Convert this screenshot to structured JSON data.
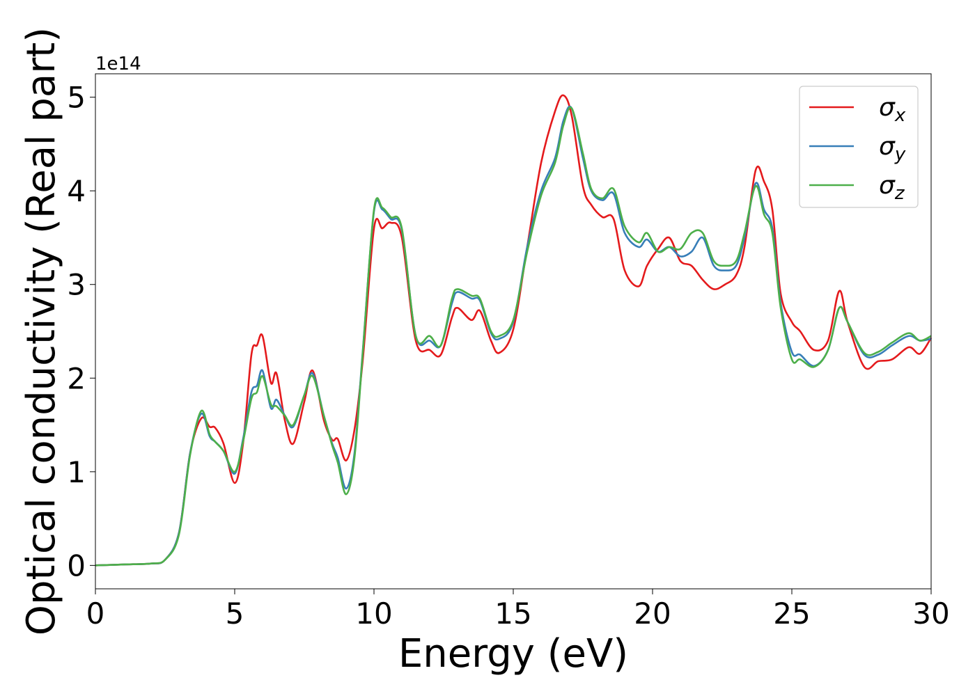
{
  "chart_data": {
    "type": "line",
    "title": "",
    "xlabel": "Energy (eV)",
    "ylabel": "Optical conductivity (Real part)",
    "y_offset_label": "1e14",
    "y_multiplier": 100000000000000.0,
    "xlim": [
      0,
      30
    ],
    "ylim": [
      -0.25,
      5.25
    ],
    "x_ticks": [
      0,
      5,
      10,
      15,
      20,
      25,
      30
    ],
    "y_ticks": [
      0,
      1,
      2,
      3,
      4,
      5
    ],
    "x_tick_labels": [
      "0",
      "5",
      "10",
      "15",
      "20",
      "25",
      "30"
    ],
    "y_tick_labels": [
      "0",
      "1",
      "2",
      "3",
      "4",
      "5"
    ],
    "grid": false,
    "legend_position": "top-right",
    "series": [
      {
        "name": "σ",
        "sub": "x",
        "color": "#e41a1c",
        "x": [
          0,
          1,
          2,
          2.5,
          3,
          3.4,
          3.8,
          4.1,
          4.3,
          4.6,
          5,
          5.3,
          5.6,
          5.8,
          6,
          6.3,
          6.5,
          6.8,
          7.1,
          7.5,
          7.8,
          8.2,
          8.5,
          8.7,
          9,
          9.3,
          9.6,
          10,
          10.3,
          10.6,
          11,
          11.5,
          12,
          12.4,
          12.8,
          13,
          13.5,
          13.8,
          14.2,
          14.5,
          15,
          15.5,
          16,
          16.5,
          16.8,
          17.1,
          17.5,
          17.8,
          18.2,
          18.6,
          19,
          19.5,
          19.8,
          20.2,
          20.6,
          21,
          21.4,
          21.8,
          22.2,
          22.6,
          23,
          23.3,
          23.7,
          24,
          24.3,
          24.6,
          25,
          25.3,
          25.8,
          26.3,
          26.7,
          27,
          27.6,
          28.1,
          28.6,
          29.2,
          29.6,
          30
        ],
        "y": [
          0,
          0.01,
          0.02,
          0.06,
          0.35,
          1.2,
          1.57,
          1.48,
          1.47,
          1.3,
          0.88,
          1.3,
          2.25,
          2.35,
          2.45,
          1.95,
          2.05,
          1.55,
          1.3,
          1.75,
          2.08,
          1.55,
          1.34,
          1.35,
          1.12,
          1.45,
          2.2,
          3.6,
          3.6,
          3.66,
          3.5,
          2.4,
          2.3,
          2.25,
          2.65,
          2.75,
          2.62,
          2.72,
          2.4,
          2.27,
          2.52,
          3.4,
          4.3,
          4.85,
          5.02,
          4.8,
          4.05,
          3.85,
          3.72,
          3.7,
          3.15,
          2.98,
          3.2,
          3.38,
          3.5,
          3.25,
          3.2,
          3.05,
          2.95,
          3.0,
          3.1,
          3.4,
          4.22,
          4.1,
          3.8,
          2.9,
          2.6,
          2.5,
          2.3,
          2.4,
          2.93,
          2.6,
          2.12,
          2.18,
          2.2,
          2.33,
          2.26,
          2.43
        ]
      },
      {
        "name": "σ",
        "sub": "y",
        "color": "#377eb8",
        "x": [
          0,
          1,
          2,
          2.5,
          3,
          3.4,
          3.8,
          4.1,
          4.3,
          4.6,
          5,
          5.3,
          5.6,
          5.8,
          6,
          6.3,
          6.5,
          6.8,
          7.1,
          7.5,
          7.8,
          8.2,
          8.5,
          8.7,
          9,
          9.3,
          9.6,
          10,
          10.3,
          10.6,
          11,
          11.5,
          12,
          12.4,
          12.8,
          13,
          13.5,
          13.8,
          14.2,
          14.5,
          15,
          15.5,
          16,
          16.5,
          16.8,
          17.1,
          17.5,
          17.8,
          18.2,
          18.6,
          19,
          19.5,
          19.8,
          20.2,
          20.6,
          21,
          21.4,
          21.8,
          22.2,
          22.6,
          23,
          23.3,
          23.7,
          24,
          24.3,
          24.6,
          25,
          25.3,
          25.8,
          26.3,
          26.7,
          27,
          27.6,
          28.1,
          28.6,
          29.2,
          29.6,
          30
        ],
        "y": [
          0,
          0.01,
          0.02,
          0.06,
          0.35,
          1.2,
          1.62,
          1.38,
          1.32,
          1.22,
          0.98,
          1.35,
          1.85,
          1.92,
          2.08,
          1.68,
          1.77,
          1.6,
          1.48,
          1.82,
          2.05,
          1.6,
          1.3,
          1.15,
          0.82,
          1.2,
          2.3,
          3.78,
          3.8,
          3.7,
          3.58,
          2.45,
          2.4,
          2.35,
          2.8,
          2.92,
          2.85,
          2.83,
          2.48,
          2.42,
          2.6,
          3.4,
          4.0,
          4.35,
          4.75,
          4.88,
          4.35,
          4.0,
          3.9,
          3.97,
          3.55,
          3.4,
          3.48,
          3.35,
          3.4,
          3.3,
          3.35,
          3.5,
          3.2,
          3.15,
          3.2,
          3.5,
          4.08,
          3.8,
          3.6,
          2.8,
          2.28,
          2.25,
          2.13,
          2.3,
          2.75,
          2.6,
          2.25,
          2.25,
          2.35,
          2.45,
          2.4,
          2.42
        ]
      },
      {
        "name": "σ",
        "sub": "z",
        "color": "#4daf4a",
        "x": [
          0,
          1,
          2,
          2.5,
          3,
          3.4,
          3.8,
          4.1,
          4.3,
          4.6,
          5,
          5.3,
          5.6,
          5.8,
          6,
          6.3,
          6.5,
          6.8,
          7.1,
          7.5,
          7.8,
          8.2,
          8.5,
          8.7,
          9,
          9.3,
          9.6,
          10,
          10.3,
          10.6,
          11,
          11.5,
          12,
          12.4,
          12.8,
          13,
          13.5,
          13.8,
          14.2,
          14.5,
          15,
          15.5,
          16,
          16.5,
          16.8,
          17.1,
          17.5,
          17.8,
          18.2,
          18.6,
          19,
          19.5,
          19.8,
          20.2,
          20.6,
          21,
          21.4,
          21.8,
          22.2,
          22.6,
          23,
          23.3,
          23.7,
          24,
          24.3,
          24.6,
          25,
          25.3,
          25.8,
          26.3,
          26.7,
          27,
          27.6,
          28.1,
          28.6,
          29.2,
          29.6,
          30
        ],
        "y": [
          0,
          0.01,
          0.02,
          0.06,
          0.33,
          1.18,
          1.65,
          1.4,
          1.32,
          1.22,
          1.0,
          1.32,
          1.78,
          1.85,
          2.02,
          1.72,
          1.7,
          1.6,
          1.5,
          1.82,
          2.02,
          1.6,
          1.28,
          1.1,
          0.76,
          1.15,
          2.28,
          3.8,
          3.82,
          3.72,
          3.6,
          2.45,
          2.45,
          2.35,
          2.85,
          2.95,
          2.88,
          2.85,
          2.5,
          2.45,
          2.62,
          3.35,
          3.95,
          4.3,
          4.7,
          4.88,
          4.4,
          4.02,
          3.92,
          4.02,
          3.62,
          3.45,
          3.55,
          3.35,
          3.4,
          3.38,
          3.55,
          3.55,
          3.25,
          3.2,
          3.25,
          3.55,
          4.05,
          3.75,
          3.55,
          2.75,
          2.2,
          2.2,
          2.12,
          2.3,
          2.75,
          2.6,
          2.27,
          2.28,
          2.38,
          2.48,
          2.4,
          2.45
        ]
      }
    ]
  }
}
